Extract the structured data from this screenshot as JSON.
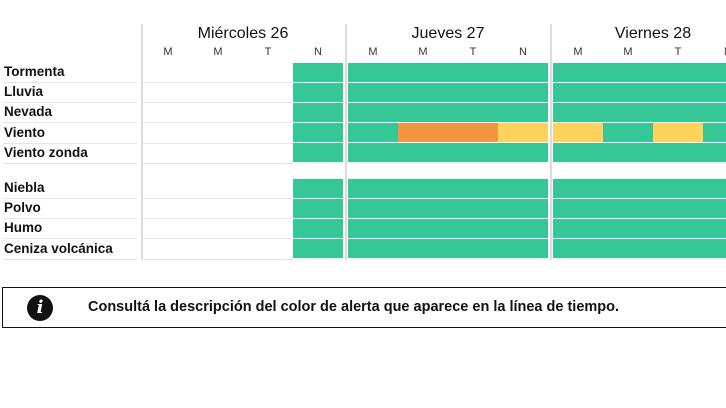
{
  "colors": {
    "verde": "#35c795",
    "amarillo": "#ffd25a",
    "naranja": "#f4963f"
  },
  "days": [
    {
      "label": "Miércoles 26",
      "periods": [
        "M",
        "M",
        "T",
        "N"
      ]
    },
    {
      "label": "Jueves 27",
      "periods": [
        "M",
        "M",
        "T",
        "N"
      ]
    },
    {
      "label": "Viernes 28",
      "periods": [
        "M",
        "M",
        "T",
        "N"
      ]
    }
  ],
  "groups": [
    [
      {
        "label": "Tormenta",
        "levels": [
          null,
          null,
          null,
          "verde",
          "verde",
          "verde",
          "verde",
          "verde",
          "verde",
          "verde",
          "verde",
          "verde"
        ]
      },
      {
        "label": "Lluvia",
        "levels": [
          null,
          null,
          null,
          "verde",
          "verde",
          "verde",
          "verde",
          "verde",
          "verde",
          "verde",
          "verde",
          "verde"
        ]
      },
      {
        "label": "Nevada",
        "levels": [
          null,
          null,
          null,
          "verde",
          "verde",
          "verde",
          "verde",
          "verde",
          "verde",
          "verde",
          "verde",
          "verde"
        ]
      },
      {
        "label": "Viento",
        "levels": [
          null,
          null,
          null,
          "verde",
          "verde",
          "naranja",
          "naranja",
          "amarillo",
          "amarillo",
          "verde",
          "amarillo",
          "verde"
        ]
      },
      {
        "label": "Viento zonda",
        "levels": [
          null,
          null,
          null,
          "verde",
          "verde",
          "verde",
          "verde",
          "verde",
          "verde",
          "verde",
          "verde",
          "verde"
        ]
      }
    ],
    [
      {
        "label": "Niebla",
        "levels": [
          null,
          null,
          null,
          "verde",
          "verde",
          "verde",
          "verde",
          "verde",
          "verde",
          "verde",
          "verde",
          "verde"
        ]
      },
      {
        "label": "Polvo",
        "levels": [
          null,
          null,
          null,
          "verde",
          "verde",
          "verde",
          "verde",
          "verde",
          "verde",
          "verde",
          "verde",
          "verde"
        ]
      },
      {
        "label": "Humo",
        "levels": [
          null,
          null,
          null,
          "verde",
          "verde",
          "verde",
          "verde",
          "verde",
          "verde",
          "verde",
          "verde",
          "verde"
        ]
      },
      {
        "label": "Ceniza volcánica",
        "levels": [
          null,
          null,
          null,
          "verde",
          "verde",
          "verde",
          "verde",
          "verde",
          "verde",
          "verde",
          "verde",
          "verde"
        ]
      }
    ]
  ],
  "info": {
    "icon": "info-icon",
    "text": "Consultá la descripción del color de alerta que aparece en la línea de tiempo."
  }
}
